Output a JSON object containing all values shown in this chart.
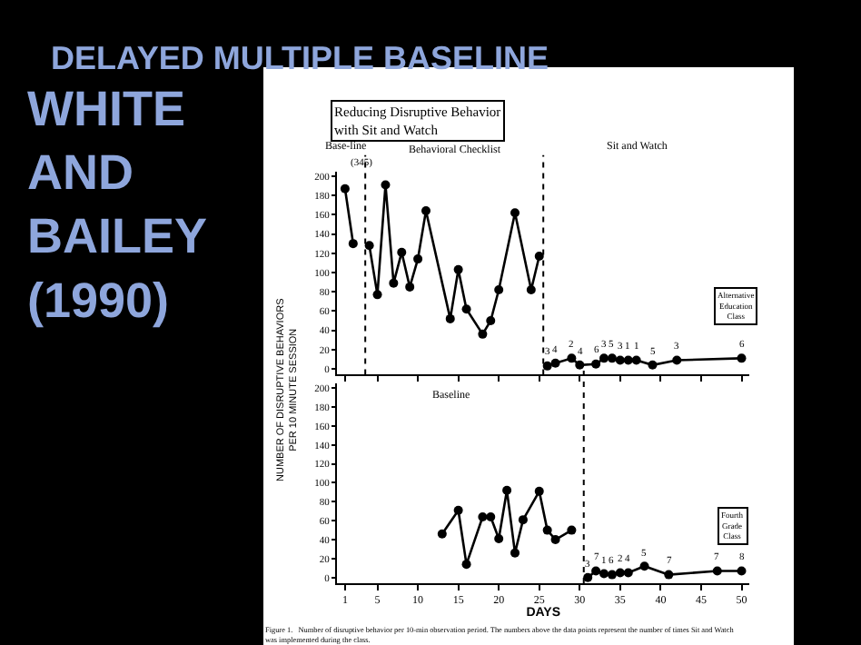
{
  "chart_data": [
    {
      "type": "line",
      "title": "DELAYED MULTIPLE BASELINE",
      "subtitle": "Reducing Disruptive Behavior with Sit and Watch",
      "ylabel": "NUMBER OF DISRUPTIVE BEHAVIORS PER 10 MINUTE SESSION",
      "marker": "circle",
      "line_style": "solid",
      "tick_labels": "y",
      "xlim": [
        0,
        51
      ],
      "xticks": [
        1,
        5,
        10,
        15,
        20,
        25,
        30,
        35,
        40,
        45,
        50
      ],
      "ylim": [
        -6,
        205
      ],
      "yticks": [
        0,
        20,
        40,
        60,
        80,
        100,
        120,
        140,
        160,
        180,
        200
      ],
      "series": [
        {
          "color": "#000000",
          "x": [
            1,
            2
          ],
          "values": [
            187,
            130
          ]
        },
        {
          "color": "#000000",
          "x": [
            4,
            5,
            6,
            7,
            8,
            9,
            10,
            11,
            14,
            15,
            16,
            18,
            19,
            20,
            22,
            24,
            25
          ],
          "values": [
            128,
            77,
            191,
            89,
            121,
            85,
            114,
            164,
            52,
            103,
            62,
            36,
            50,
            82,
            162,
            82,
            117
          ]
        },
        {
          "color": "#000000",
          "x": [
            26,
            27,
            29,
            30,
            32,
            33,
            34,
            35,
            36,
            37,
            39,
            42,
            50
          ],
          "values": [
            3,
            6,
            11,
            4,
            5,
            11,
            11,
            9,
            9,
            9,
            4,
            9,
            11
          ]
        }
      ],
      "ref_lines": [
        {
          "axis": "x",
          "value": 3.5,
          "line_style": "dotted"
        },
        {
          "axis": "x",
          "value": 25.5,
          "line_style": "dotted"
        }
      ],
      "annotations": [
        "WHITE AND BAILEY (1990)",
        "Base-line",
        "Behavioral Checklist",
        "Sit and Watch",
        "Alternative Education Class",
        {
          "text": "(345)",
          "x": 3,
          "y": 200
        },
        {
          "text": "3",
          "x": 26,
          "y": 3
        },
        {
          "text": "4",
          "x": 27,
          "y": 6
        },
        {
          "text": "2",
          "x": 29,
          "y": 11
        },
        {
          "text": "4",
          "x": 30,
          "y": 4
        },
        {
          "text": "6",
          "x": 32,
          "y": 5
        },
        {
          "text": "3",
          "x": 33,
          "y": 11
        },
        {
          "text": "5",
          "x": 34,
          "y": 11
        },
        {
          "text": "3",
          "x": 35,
          "y": 9
        },
        {
          "text": "1",
          "x": 36,
          "y": 9
        },
        {
          "text": "1",
          "x": 37,
          "y": 9
        },
        {
          "text": "5",
          "x": 39,
          "y": 4
        },
        {
          "text": "3",
          "x": 42,
          "y": 9
        },
        {
          "text": "6",
          "x": 50,
          "y": 11
        }
      ]
    },
    {
      "type": "line",
      "xlabel": "DAYS",
      "marker": "circle",
      "line_style": "solid",
      "xlim": [
        0,
        51
      ],
      "xticks": [
        1,
        5,
        10,
        15,
        20,
        25,
        30,
        35,
        40,
        45,
        50
      ],
      "ylim": [
        -6,
        205
      ],
      "yticks": [
        0,
        20,
        40,
        60,
        80,
        100,
        120,
        140,
        160,
        180,
        200
      ],
      "series": [
        {
          "color": "#000000",
          "x": [
            13,
            15,
            16,
            18,
            19,
            20,
            21,
            22,
            23,
            25,
            26,
            27,
            29
          ],
          "values": [
            46,
            71,
            14,
            64,
            64,
            41,
            92,
            26,
            61,
            91,
            50,
            40,
            50
          ]
        },
        {
          "color": "#000000",
          "x": [
            31,
            32,
            33,
            34,
            35,
            36,
            38,
            41,
            47,
            50
          ],
          "values": [
            0,
            7,
            4,
            3,
            5,
            5,
            12,
            3,
            7,
            7
          ]
        }
      ],
      "ref_lines": [
        {
          "axis": "x",
          "value": 30.5,
          "line_style": "dotted"
        }
      ],
      "annotations": [
        "Baseline",
        "Fourth Grade Class",
        "Figure 1.   Number of disruptive behavior per 10-min observation period. The numbers above the data points represent the number of times Sit and Watch was implemented during the class.",
        {
          "text": "3",
          "x": 31,
          "y": 0
        },
        {
          "text": "7",
          "x": 32,
          "y": 7
        },
        {
          "text": "1",
          "x": 33,
          "y": 4
        },
        {
          "text": "6",
          "x": 34,
          "y": 3
        },
        {
          "text": "2",
          "x": 35,
          "y": 5
        },
        {
          "text": "4",
          "x": 36,
          "y": 5
        },
        {
          "text": "5",
          "x": 38,
          "y": 12
        },
        {
          "text": "7",
          "x": 41,
          "y": 3
        },
        {
          "text": "7",
          "x": 47,
          "y": 7
        },
        {
          "text": "8",
          "x": 50,
          "y": 7
        }
      ]
    }
  ]
}
